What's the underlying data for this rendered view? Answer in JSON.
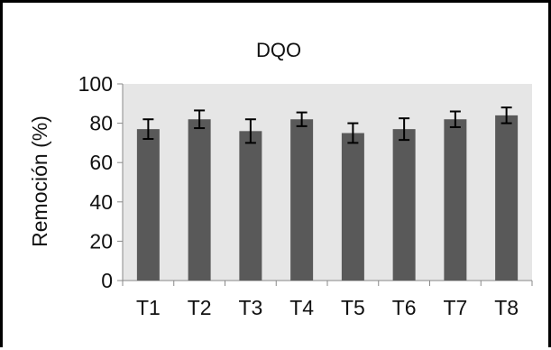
{
  "chart_data": {
    "type": "bar",
    "title": "DQO",
    "ylabel": "Remoción (%)",
    "xlabel": "",
    "categories": [
      "T1",
      "T2",
      "T3",
      "T4",
      "T5",
      "T6",
      "T7",
      "T8"
    ],
    "values": [
      77,
      82,
      76,
      82,
      75,
      77,
      82,
      84
    ],
    "error": [
      5,
      4.5,
      6,
      3.5,
      5,
      5.5,
      4,
      4
    ],
    "ylim": [
      0,
      100
    ],
    "yticks": [
      "0",
      "20",
      "40",
      "60",
      "80",
      "100"
    ],
    "grid": false,
    "legend": "none",
    "colors": {
      "bar": "#595959",
      "plot_area": "#e6e6e6",
      "error": "#000000"
    }
  }
}
